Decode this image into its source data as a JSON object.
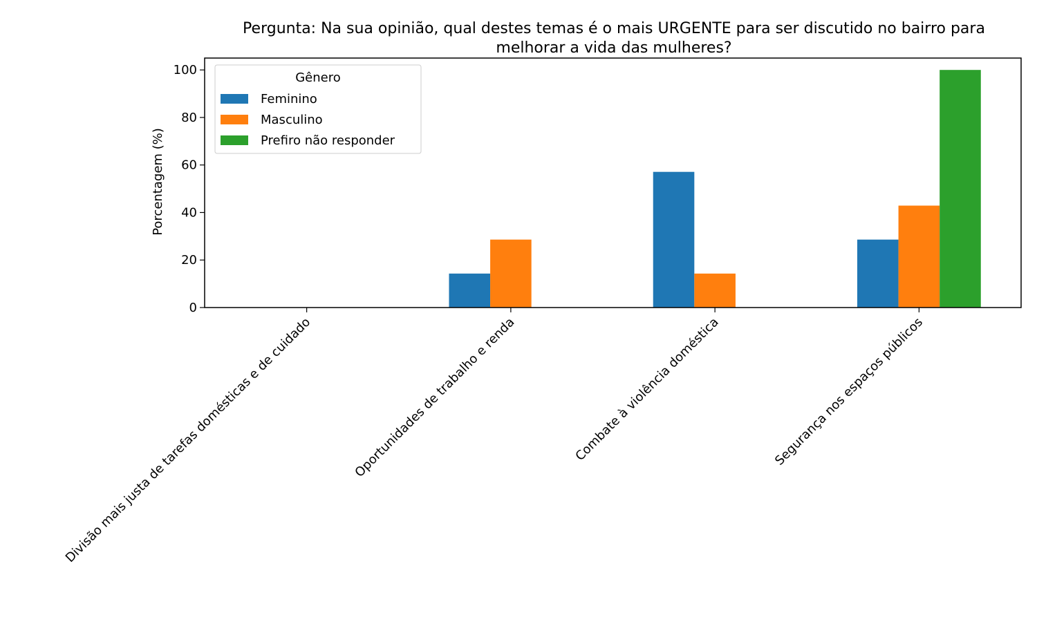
{
  "chart_data": {
    "type": "bar",
    "title": [
      "Pergunta: Na sua opinião, qual destes temas é o mais URGENTE para ser discutido no bairro para",
      "melhorar a vida das mulheres?"
    ],
    "xlabel": "",
    "ylabel": "Porcentagem (%)",
    "ylim": [
      0,
      105
    ],
    "yticks": [
      0,
      20,
      40,
      60,
      80,
      100
    ],
    "grid": false,
    "legend": {
      "title": "Gênero",
      "placement": "top-left"
    },
    "categories": [
      "Divisão mais justa de tarefas domésticas e de cuidado",
      "Oportunidades de trabalho e renda",
      "Combate à violência doméstica",
      "Segurança nos espaços públicos"
    ],
    "series": [
      {
        "name": "Feminino",
        "color": "#1f77b4",
        "values": [
          0,
          14.3,
          57.1,
          28.6
        ]
      },
      {
        "name": "Masculino",
        "color": "#ff7f0e",
        "values": [
          0,
          28.6,
          14.3,
          42.9
        ]
      },
      {
        "name": "Prefiro não responder",
        "color": "#2ca02c",
        "values": [
          0,
          0,
          0,
          100
        ]
      }
    ]
  }
}
